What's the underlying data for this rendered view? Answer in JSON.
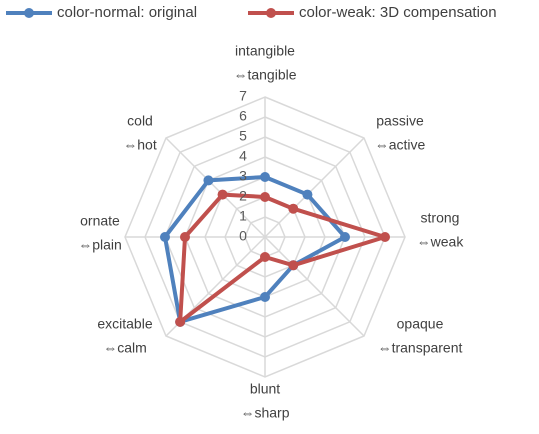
{
  "chart_data": {
    "type": "radar",
    "categories": [
      [
        "intangible",
        "⇔tangible"
      ],
      [
        "passive",
        "⇔active"
      ],
      [
        "strong",
        "⇔weak"
      ],
      [
        "opaque",
        "⇔transparent"
      ],
      [
        "blunt",
        "⇔sharp"
      ],
      [
        "excitable",
        "⇔calm"
      ],
      [
        "ornate",
        "⇔plain"
      ],
      [
        "cold",
        "⇔hot"
      ]
    ],
    "series": [
      {
        "name": "color-normal: original",
        "color": "#4f81bd",
        "values": [
          3,
          3,
          4,
          2,
          3,
          6,
          5,
          4
        ]
      },
      {
        "name": "color-weak: 3D compensation",
        "color": "#c0504d",
        "values": [
          2,
          2,
          6,
          2,
          1,
          6,
          4,
          3
        ]
      }
    ],
    "ylim": [
      0,
      7
    ],
    "yticks": [
      0,
      1,
      2,
      3,
      4,
      5,
      6,
      7
    ],
    "grid": true,
    "legend": "top"
  }
}
